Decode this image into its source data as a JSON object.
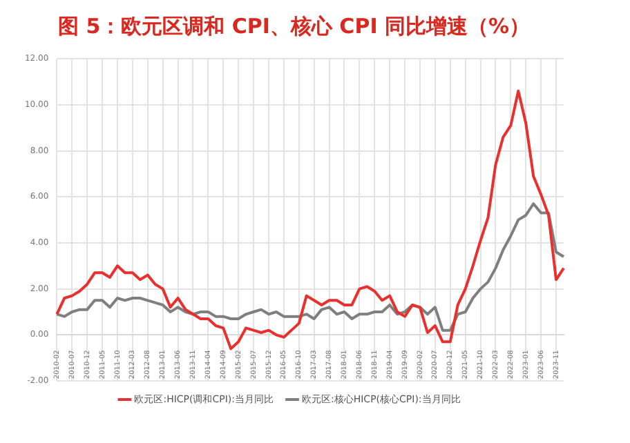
{
  "chart_data": {
    "type": "line",
    "title": "图 5：欧元区调和 CPI、核心 CPI 同比增速（%）",
    "categories": [
      "2010-02",
      null,
      "2010-07",
      null,
      "2010-12",
      null,
      "2011-05",
      null,
      "2011-10",
      null,
      "2012-03",
      null,
      "2012-08",
      null,
      "2013-01",
      null,
      "2013-06",
      null,
      "2013-11",
      null,
      "2014-04",
      null,
      "2014-09",
      null,
      "2015-02",
      null,
      "2015-07",
      null,
      "2015-12",
      null,
      "2016-05",
      null,
      "2016-10",
      null,
      "2017-03",
      null,
      "2017-08",
      null,
      "2018-01",
      null,
      "2018-06",
      null,
      "2018-11",
      null,
      "2019-04",
      null,
      "2019-09",
      null,
      "2020-02",
      null,
      "2020-07",
      null,
      "2020-12",
      null,
      "2021-05",
      null,
      "2021-10",
      null,
      "2022-03",
      null,
      "2022-08",
      null,
      "2023-01",
      null,
      "2023-06",
      null,
      "2023-11",
      null
    ],
    "series": [
      {
        "name": "欧元区:HICP(调和CPI):当月同比",
        "color": "#e8312f",
        "values": [
          0.9,
          1.6,
          1.7,
          1.9,
          2.2,
          2.7,
          2.7,
          2.5,
          3.0,
          2.7,
          2.7,
          2.4,
          2.6,
          2.2,
          2.0,
          1.2,
          1.6,
          1.1,
          0.9,
          0.7,
          0.7,
          0.4,
          0.3,
          -0.6,
          -0.3,
          0.3,
          0.2,
          0.1,
          0.2,
          0.0,
          -0.1,
          0.2,
          0.5,
          1.7,
          1.5,
          1.3,
          1.5,
          1.5,
          1.3,
          1.3,
          2.0,
          2.1,
          1.9,
          1.5,
          1.7,
          1.0,
          0.8,
          1.3,
          1.2,
          0.1,
          0.4,
          -0.3,
          -0.3,
          1.3,
          2.0,
          3.0,
          4.1,
          5.1,
          7.4,
          8.6,
          9.1,
          10.6,
          9.2,
          6.9,
          6.1,
          5.2,
          2.4,
          2.9
        ]
      },
      {
        "name": "欧元区:核心HICP(核心CPI):当月同比",
        "color": "#7f7f7f",
        "values": [
          0.9,
          0.8,
          1.0,
          1.1,
          1.1,
          1.5,
          1.5,
          1.2,
          1.6,
          1.5,
          1.6,
          1.6,
          1.5,
          1.4,
          1.3,
          1.0,
          1.2,
          1.0,
          0.9,
          1.0,
          1.0,
          0.8,
          0.8,
          0.7,
          0.7,
          0.9,
          1.0,
          1.1,
          0.9,
          1.0,
          0.8,
          0.8,
          0.8,
          0.9,
          0.7,
          1.1,
          1.2,
          0.9,
          1.0,
          0.7,
          0.9,
          0.9,
          1.0,
          1.0,
          1.3,
          0.9,
          1.0,
          1.3,
          1.2,
          0.9,
          1.2,
          0.2,
          0.2,
          0.9,
          1.0,
          1.6,
          2.0,
          2.3,
          2.9,
          3.7,
          4.3,
          5.0,
          5.2,
          5.7,
          5.3,
          5.3,
          3.6,
          3.4
        ]
      }
    ],
    "ylim": [
      -2,
      12
    ],
    "yticks": [
      {
        "value": -2,
        "label": "-2.00"
      },
      {
        "value": 0,
        "label": "0.00"
      },
      {
        "value": 2,
        "label": "2.00"
      },
      {
        "value": 4,
        "label": "4.00"
      },
      {
        "value": 6,
        "label": "6.00"
      },
      {
        "value": 8,
        "label": "8.00"
      },
      {
        "value": 10,
        "label": "10.00"
      },
      {
        "value": 12,
        "label": "12.00"
      }
    ],
    "grid": true,
    "legend": "bottom",
    "marker": "none",
    "line_style": "solid"
  }
}
